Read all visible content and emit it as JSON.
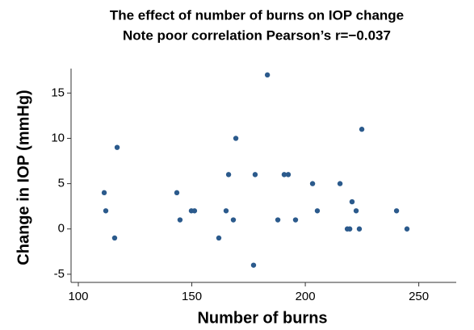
{
  "chart_data": {
    "type": "scatter",
    "title": "The effect of number of burns on IOP change",
    "subtitle": "Note poor correlation Pearson’s r=−0.037",
    "x_label": "Number of burns",
    "y_label": "Change in IOP (mmHg)",
    "color": "#2b5a8c",
    "x": [
      111.4,
      112.1,
      116,
      117.1,
      143.4,
      144.8,
      149.8,
      151.2,
      161.9,
      165.1,
      166.2,
      168.3,
      169.4,
      177.2,
      177.9,
      183.3,
      187.9,
      190.7,
      192.5,
      195.7,
      203.2,
      205.3,
      215.3,
      218.5,
      219.6,
      220.6,
      222.4,
      223.8,
      224.9,
      240.2,
      244.8
    ],
    "values": [
      4,
      2,
      -1,
      9,
      4,
      1,
      2,
      2,
      -1,
      2,
      6,
      1,
      10,
      -4,
      6,
      17,
      1,
      6,
      6,
      1,
      5,
      2,
      5,
      0,
      0,
      3,
      2,
      0,
      11,
      2,
      0
    ],
    "xlim": [
      96.8,
      266.5
    ],
    "xticks": [
      100,
      150,
      200,
      250
    ],
    "ylim": [
      -5.9,
      17.7
    ],
    "yticks": [
      -5,
      0,
      5,
      10,
      15
    ],
    "grid": false
  }
}
